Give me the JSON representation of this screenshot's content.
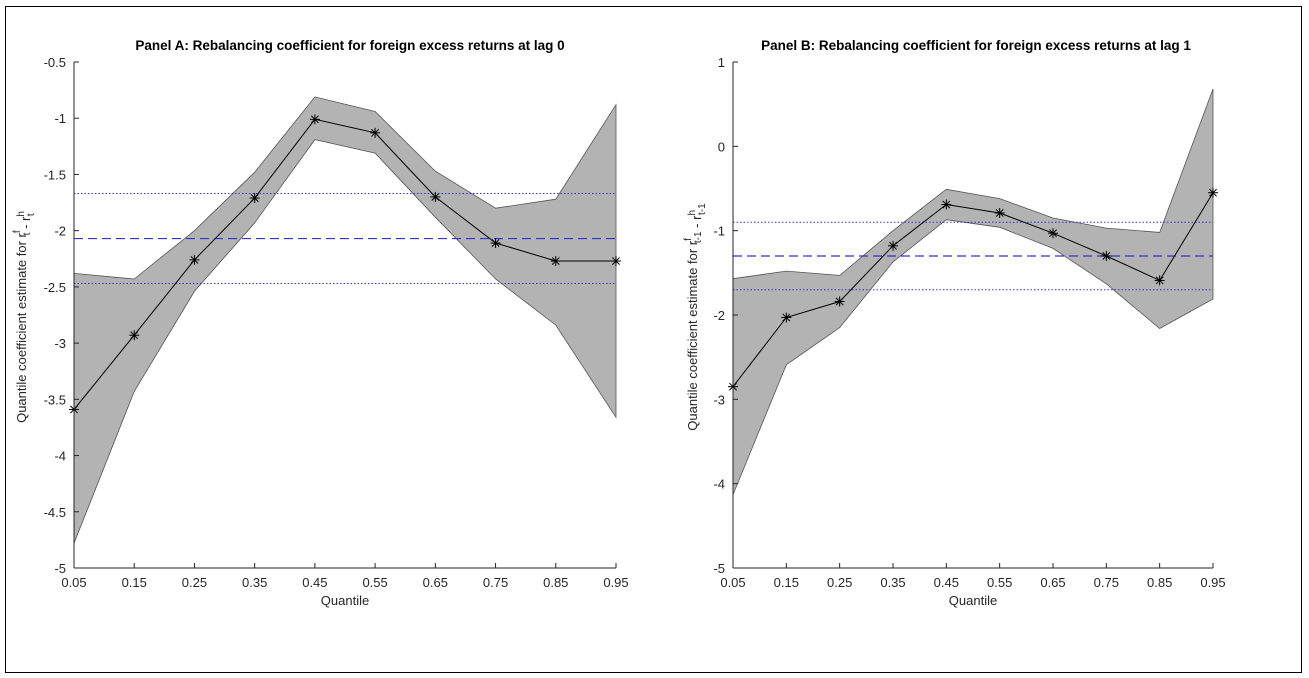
{
  "colors": {
    "band_fill": "#b3b3b3",
    "band_edge": "#555555",
    "estimate_line": "#000000",
    "mean_line": "#3333cc",
    "ci_line": "#3333cc"
  },
  "chart_data": [
    {
      "type": "line",
      "title": "Panel A: Rebalancing coefficient for foreign excess returns at lag 0",
      "xlabel": "Quantile",
      "ylabel": {
        "prefix": "Quantile coefficient estimate for r",
        "sup1": "f",
        "sub1": "t",
        "mid": " - r",
        "sup2": "h",
        "sub2": "t"
      },
      "xlim": [
        0.05,
        0.95
      ],
      "ylim": [
        -5,
        -0.5
      ],
      "x_ticks": [
        0.05,
        0.15,
        0.25,
        0.35,
        0.45,
        0.55,
        0.65,
        0.75,
        0.85,
        0.95
      ],
      "x_tick_labels": [
        "0.05",
        "0.15",
        "0.25",
        "0.35",
        "0.45",
        "0.55",
        "0.65",
        "0.75",
        "0.85",
        "0.95"
      ],
      "y_ticks": [
        -5,
        -4.5,
        -4,
        -3.5,
        -3,
        -2.5,
        -2,
        -1.5,
        -1,
        -0.5
      ],
      "y_tick_labels": [
        "-5",
        "-4.5",
        "-4",
        "-3.5",
        "-3",
        "-2.5",
        "-2",
        "-1.5",
        "-1",
        "-0.5"
      ],
      "x": [
        0.05,
        0.15,
        0.25,
        0.35,
        0.45,
        0.55,
        0.65,
        0.75,
        0.85,
        0.95
      ],
      "series": [
        {
          "values": [
            -3.59,
            -2.93,
            -2.26,
            -1.71,
            -1.01,
            -1.13,
            -1.7,
            -2.11,
            -2.27,
            -2.27
          ]
        }
      ],
      "band_upper": [
        -2.38,
        -2.43,
        -2.0,
        -1.48,
        -0.81,
        -0.94,
        -1.47,
        -1.8,
        -1.72,
        -0.88
      ],
      "band_lower": [
        -4.78,
        -3.43,
        -2.54,
        -1.93,
        -1.19,
        -1.31,
        -1.88,
        -2.43,
        -2.84,
        -3.66
      ],
      "hlines": [
        {
          "value": -2.07,
          "style": "dashed"
        },
        {
          "value": -1.67,
          "style": "dotted"
        },
        {
          "value": -2.47,
          "style": "dotted"
        }
      ]
    },
    {
      "type": "line",
      "title": "Panel B: Rebalancing coefficient for foreign excess returns at lag 1",
      "xlabel": "Quantile",
      "ylabel": {
        "prefix": "Quantile coefficient estimate for r",
        "sup1": "f",
        "sub1": "t-1",
        "mid": " - r",
        "sup2": "h",
        "sub2": "t-1"
      },
      "xlim": [
        0.05,
        0.95
      ],
      "ylim": [
        -5,
        1
      ],
      "x_ticks": [
        0.05,
        0.15,
        0.25,
        0.35,
        0.45,
        0.55,
        0.65,
        0.75,
        0.85,
        0.95
      ],
      "x_tick_labels": [
        "0.05",
        "0.15",
        "0.25",
        "0.35",
        "0.45",
        "0.55",
        "0.65",
        "0.75",
        "0.85",
        "0.95"
      ],
      "y_ticks": [
        -5,
        -4,
        -3,
        -2,
        -1,
        0,
        1
      ],
      "y_tick_labels": [
        "-5",
        "-4",
        "-3",
        "-2",
        "-1",
        "0",
        "1"
      ],
      "x": [
        0.05,
        0.15,
        0.25,
        0.35,
        0.45,
        0.55,
        0.65,
        0.75,
        0.85,
        0.95
      ],
      "series": [
        {
          "values": [
            -2.85,
            -2.03,
            -1.84,
            -1.18,
            -0.69,
            -0.79,
            -1.03,
            -1.3,
            -1.59,
            -0.55
          ]
        }
      ],
      "band_upper": [
        -1.57,
        -1.48,
        -1.53,
        -1.0,
        -0.51,
        -0.62,
        -0.85,
        -0.97,
        -1.02,
        0.68
      ],
      "band_lower": [
        -4.13,
        -2.59,
        -2.15,
        -1.37,
        -0.87,
        -0.96,
        -1.21,
        -1.63,
        -2.16,
        -1.81
      ],
      "hlines": [
        {
          "value": -1.3,
          "style": "dashed"
        },
        {
          "value": -0.9,
          "style": "dotted"
        },
        {
          "value": -1.7,
          "style": "dotted"
        }
      ]
    }
  ]
}
